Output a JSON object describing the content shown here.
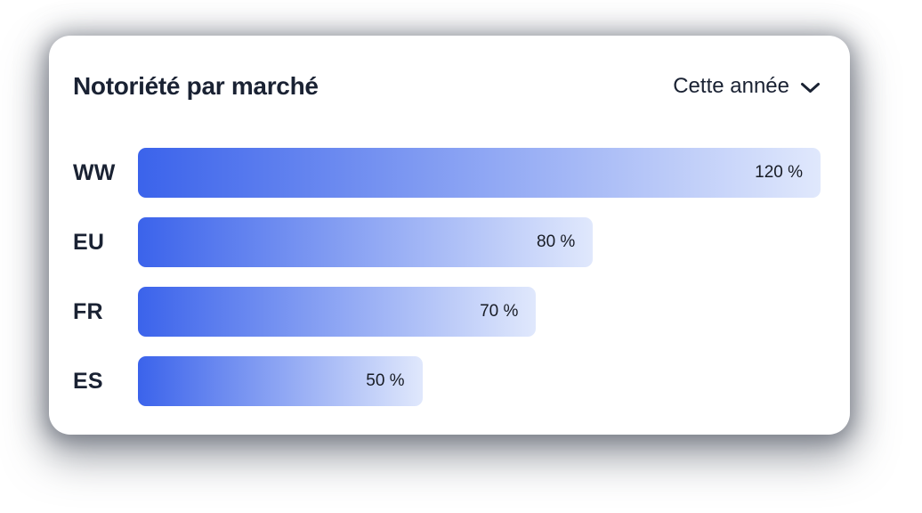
{
  "card": {
    "title": "Notoriété par marché",
    "filter": {
      "selected_label": "Cette année",
      "icon": "chevron-down"
    }
  },
  "chart_data": {
    "type": "bar",
    "orientation": "horizontal",
    "title": "Notoriété par marché",
    "categories": [
      "WW",
      "EU",
      "FR",
      "ES"
    ],
    "values": [
      120,
      80,
      70,
      50
    ],
    "value_labels": [
      "120 %",
      "80 %",
      "70 %",
      "50 %"
    ],
    "unit": "%",
    "max_value": 120,
    "xlim": [
      0,
      120
    ],
    "grid": false,
    "legend": false,
    "bar_gradient_start": "#3B63EB",
    "bar_gradient_end": "#E0E8FC",
    "label_color": "#1A2233",
    "value_text_color": "#181C25"
  }
}
